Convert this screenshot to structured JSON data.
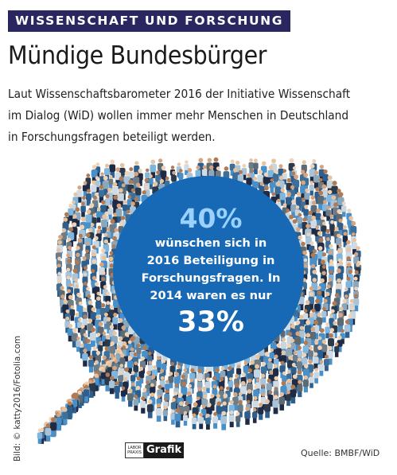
{
  "header": {
    "topic_label": "WISSENSCHAFT UND FORSCHUNG",
    "title": "Mündige Bundesbürger",
    "intro_lines": [
      "Laut Wissenschaftsbarometer 2016 der Initiative Wissenschaft",
      "im Dialog (WiD) wollen immer mehr Menschen in Deutschland",
      "in Forschungsfragen beteiligt werden."
    ]
  },
  "circle": {
    "pct_2016": "40%",
    "lines": [
      "wünschen sich in",
      "2016 Beteiligung in",
      "Forschungsfragen. In",
      "2014 waren es nur"
    ],
    "pct_2014": "33%"
  },
  "footer": {
    "credit": "Bild: © katty2016/Fotolia.com",
    "logo_small": "LABOR PRAXIS",
    "logo_label": "Grafik",
    "source": "Quelle: BMBF/WiD"
  },
  "colors": {
    "topic_bg": "#2a2660",
    "circle_blue": "#1769b5",
    "pct_light_blue": "#9bd1ff"
  }
}
